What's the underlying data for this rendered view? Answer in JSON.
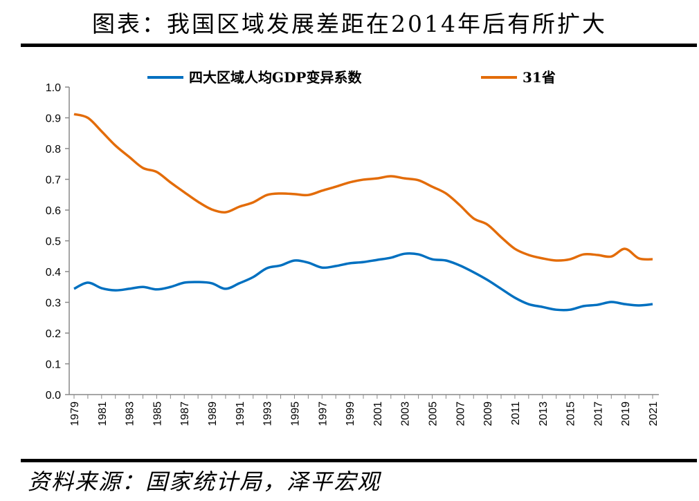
{
  "title": "图表：我国区域发展差距在2014年后有所扩大",
  "source": "资料来源：国家统计局，泽平宏观",
  "chart_data": {
    "type": "line",
    "title": "图表：我国区域发展差距在2014年后有所扩大",
    "xlabel": "",
    "ylabel": "",
    "ylim": [
      0,
      1.0
    ],
    "yticks": [
      "0.0",
      "0.1",
      "0.2",
      "0.3",
      "0.4",
      "0.5",
      "0.6",
      "0.7",
      "0.8",
      "0.9",
      "1.0"
    ],
    "grid": false,
    "legend_position": "top",
    "x": [
      1979,
      1980,
      1981,
      1982,
      1983,
      1984,
      1985,
      1986,
      1987,
      1988,
      1989,
      1990,
      1991,
      1992,
      1993,
      1994,
      1995,
      1996,
      1997,
      1998,
      1999,
      2000,
      2001,
      2002,
      2003,
      2004,
      2005,
      2006,
      2007,
      2008,
      2009,
      2010,
      2011,
      2012,
      2013,
      2014,
      2015,
      2016,
      2017,
      2018,
      2019,
      2020,
      2021
    ],
    "xtick_labels": [
      "1979",
      "1981",
      "1983",
      "1985",
      "1987",
      "1989",
      "1991",
      "1993",
      "1995",
      "1997",
      "1999",
      "2001",
      "2003",
      "2005",
      "2007",
      "2009",
      "2011",
      "2013",
      "2015",
      "2017",
      "2019",
      "2021"
    ],
    "series": [
      {
        "name": "四大区域人均GDP变异系数",
        "color": "#0070C0",
        "values": [
          0.344,
          0.364,
          0.346,
          0.339,
          0.344,
          0.35,
          0.342,
          0.35,
          0.364,
          0.366,
          0.362,
          0.344,
          0.362,
          0.382,
          0.411,
          0.42,
          0.436,
          0.429,
          0.413,
          0.418,
          0.427,
          0.431,
          0.438,
          0.445,
          0.458,
          0.456,
          0.44,
          0.436,
          0.42,
          0.398,
          0.373,
          0.344,
          0.315,
          0.294,
          0.285,
          0.276,
          0.276,
          0.288,
          0.292,
          0.301,
          0.294,
          0.29,
          0.294
        ]
      },
      {
        "name": "31省",
        "color": "#E36C09",
        "values": [
          0.912,
          0.9,
          0.856,
          0.81,
          0.773,
          0.737,
          0.724,
          0.69,
          0.658,
          0.627,
          0.602,
          0.593,
          0.611,
          0.625,
          0.649,
          0.654,
          0.652,
          0.649,
          0.663,
          0.676,
          0.69,
          0.699,
          0.703,
          0.71,
          0.703,
          0.697,
          0.676,
          0.654,
          0.616,
          0.573,
          0.553,
          0.512,
          0.474,
          0.454,
          0.443,
          0.436,
          0.44,
          0.456,
          0.454,
          0.449,
          0.474,
          0.443,
          0.44
        ]
      }
    ]
  }
}
